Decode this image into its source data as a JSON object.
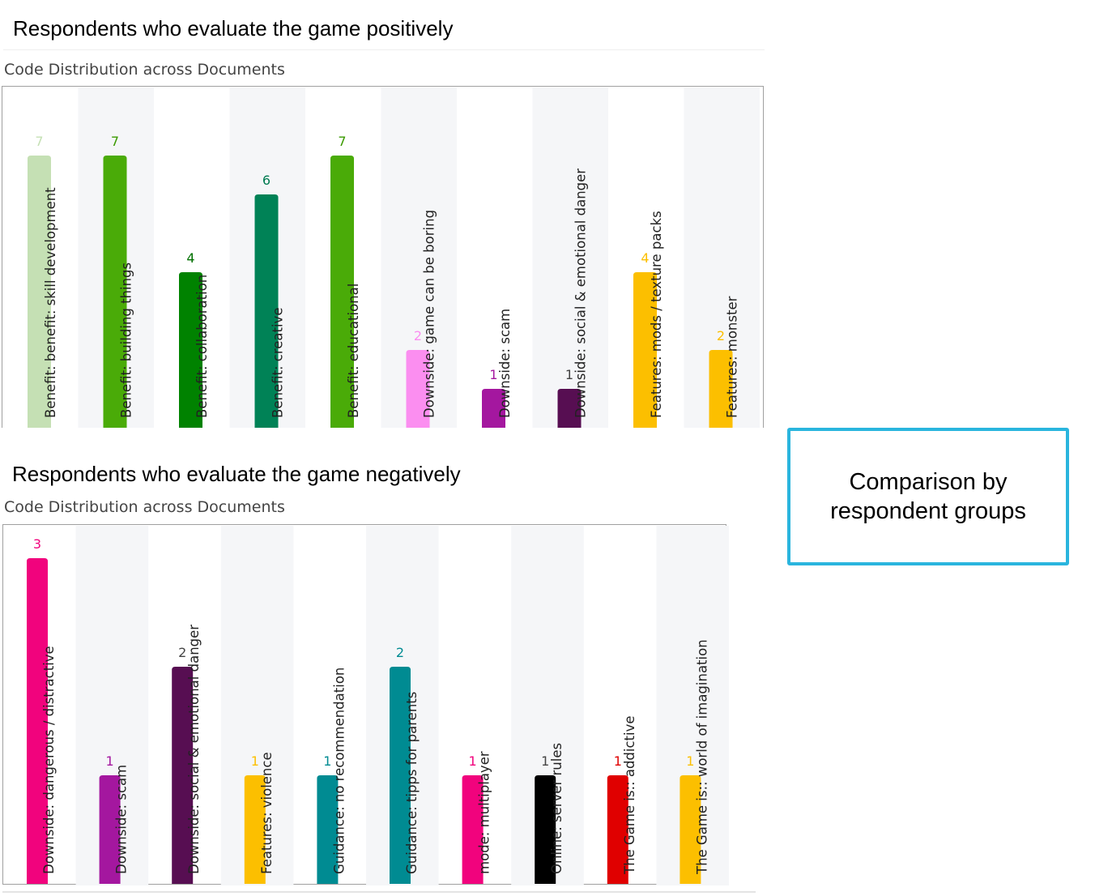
{
  "sections": [
    {
      "heading": "Respondents who evaluate the game positively",
      "chart_title": "Code Distribution across Documents",
      "chart_data": {
        "type": "bar",
        "categories": [
          "Benefit: benefit: skill development",
          "Benefit: building things",
          "Benefit: collaboration",
          "Benefit: creative",
          "Benefit: educational",
          "Downside: game can be boring",
          "Downside: scam",
          "Downside: social & emotional danger",
          "Features: mods / texture packs",
          "Features: monster"
        ],
        "values": [
          7,
          7,
          4,
          6,
          7,
          2,
          1,
          1,
          4,
          2
        ],
        "colors": [
          "#c5e0b4",
          "#4aab08",
          "#008200",
          "#008256",
          "#4aab08",
          "#fb8ef0",
          "#a4179f",
          "#570e52",
          "#fcbf00",
          "#fcbf00"
        ],
        "label_colors": [
          "#c5e0b4",
          "#3a9a00",
          "#007000",
          "#007a50",
          "#3a9a00",
          "#fb8ef0",
          "#a4179f",
          "#444444",
          "#fcbf00",
          "#fcbf00"
        ],
        "ylim": [
          0,
          7
        ],
        "grid": false,
        "legend": "none"
      }
    },
    {
      "heading": "Respondents who evaluate the game negatively",
      "chart_title": "Code Distribution across Documents",
      "chart_data": {
        "type": "bar",
        "categories": [
          "Downside: dangerous / distractive",
          "Downside: scam",
          "Downside: social & emotional danger",
          "Features: violence",
          "Guidance: no recommendation",
          "Guidance: tipps for parents",
          "mode: multiplayer",
          "Online: server rules",
          "The Game is:: addictive",
          "The Game is:: world of imagination"
        ],
        "values": [
          3,
          1,
          2,
          1,
          1,
          2,
          1,
          1,
          1,
          1
        ],
        "colors": [
          "#f1037d",
          "#a4179f",
          "#570e52",
          "#fcbf00",
          "#008b92",
          "#008b92",
          "#f1037d",
          "#000000",
          "#e00000",
          "#fcbf00"
        ],
        "label_colors": [
          "#f1037d",
          "#a4179f",
          "#444444",
          "#fcbf00",
          "#008b92",
          "#008b92",
          "#f1037d",
          "#444444",
          "#e00000",
          "#fcbf00"
        ],
        "ylim": [
          0,
          3
        ],
        "grid": false,
        "legend": "none"
      }
    }
  ],
  "callout": {
    "text": "Comparison by respondent groups",
    "border_color": "#2ab5de"
  }
}
